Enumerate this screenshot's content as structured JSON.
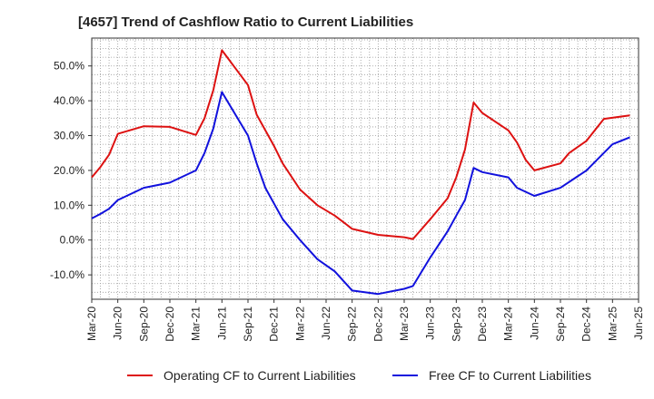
{
  "chart_data": {
    "type": "line",
    "title": "[4657]  Trend of Cashflow Ratio to Current Liabilities",
    "xlabel": "",
    "ylabel": "",
    "ylim": [
      -17,
      58
    ],
    "yticks": [
      "50.0%",
      "40.0%",
      "30.0%",
      "20.0%",
      "10.0%",
      "0.0%",
      "-10.0%"
    ],
    "ytick_values": [
      50,
      40,
      30,
      20,
      10,
      0,
      -10
    ],
    "xticks": [
      "Mar-20",
      "Jun-20",
      "Sep-20",
      "Dec-20",
      "Mar-21",
      "Jun-21",
      "Sep-21",
      "Dec-21",
      "Mar-22",
      "Jun-22",
      "Sep-22",
      "Dec-22",
      "Mar-23",
      "Jun-23",
      "Sep-23",
      "Dec-23",
      "Mar-24",
      "Jun-24",
      "Sep-24",
      "Dec-24",
      "Mar-25",
      "Jun-25"
    ],
    "grid": true,
    "legend_position": "bottom",
    "series": [
      {
        "name": "Operating CF to Current Liabilities",
        "color": "#dd1111",
        "points": [
          [
            0,
            18.0
          ],
          [
            1,
            21.0
          ],
          [
            2,
            24.5
          ],
          [
            3,
            30.5
          ],
          [
            6,
            32.7
          ],
          [
            9,
            32.5
          ],
          [
            12,
            30.2
          ],
          [
            13,
            35.0
          ],
          [
            14,
            43.0
          ],
          [
            15,
            54.5
          ],
          [
            18,
            44.5
          ],
          [
            19,
            36.0
          ],
          [
            21,
            27.0
          ],
          [
            22,
            22.0
          ],
          [
            24,
            14.5
          ],
          [
            26,
            10.0
          ],
          [
            28,
            7.0
          ],
          [
            30,
            3.2
          ],
          [
            33,
            1.5
          ],
          [
            36,
            0.8
          ],
          [
            37,
            0.3
          ],
          [
            39,
            6.0
          ],
          [
            41,
            12.0
          ],
          [
            42,
            18.0
          ],
          [
            43,
            26.0
          ],
          [
            44,
            39.5
          ],
          [
            45,
            36.5
          ],
          [
            48,
            31.5
          ],
          [
            49,
            28.0
          ],
          [
            50,
            23.0
          ],
          [
            51,
            20.0
          ],
          [
            54,
            22.0
          ],
          [
            55,
            25.0
          ],
          [
            57,
            28.5
          ],
          [
            59,
            34.8
          ],
          [
            62,
            35.8
          ]
        ]
      },
      {
        "name": "Free CF to Current Liabilities",
        "color": "#1111dd",
        "points": [
          [
            0,
            6.2
          ],
          [
            1,
            7.5
          ],
          [
            2,
            9.0
          ],
          [
            3,
            11.5
          ],
          [
            6,
            15.0
          ],
          [
            9,
            16.5
          ],
          [
            12,
            20.0
          ],
          [
            13,
            25.0
          ],
          [
            14,
            32.0
          ],
          [
            15,
            42.5
          ],
          [
            18,
            30.0
          ],
          [
            19,
            22.0
          ],
          [
            20,
            15.0
          ],
          [
            22,
            6.0
          ],
          [
            24,
            0.0
          ],
          [
            26,
            -5.5
          ],
          [
            28,
            -9.0
          ],
          [
            30,
            -14.5
          ],
          [
            33,
            -15.5
          ],
          [
            36,
            -14.0
          ],
          [
            37,
            -13.2
          ],
          [
            39,
            -5.0
          ],
          [
            41,
            2.5
          ],
          [
            42,
            7.0
          ],
          [
            43,
            11.5
          ],
          [
            44,
            20.7
          ],
          [
            45,
            19.5
          ],
          [
            48,
            18.0
          ],
          [
            49,
            15.0
          ],
          [
            51,
            12.7
          ],
          [
            54,
            15.0
          ],
          [
            57,
            20.0
          ],
          [
            58,
            22.5
          ],
          [
            60,
            27.5
          ],
          [
            62,
            29.5
          ]
        ]
      }
    ]
  }
}
